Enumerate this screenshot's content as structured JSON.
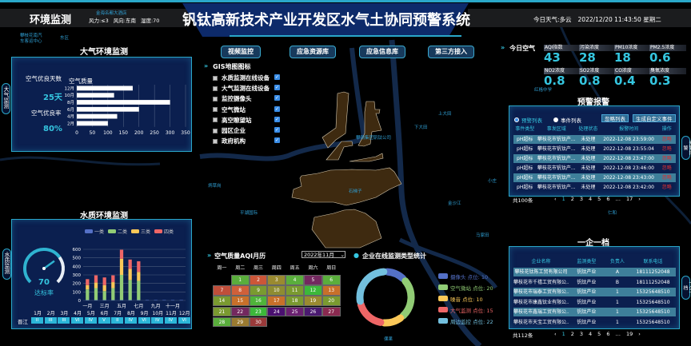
{
  "header": {
    "section": "环境监测",
    "wind_force": "风力:≤3",
    "wind_dir": "风向:东南",
    "humidity": "湿度:70",
    "title": "钒钛高新技术产业开发区水气土协同预警系统",
    "weather": "今日天气:多云",
    "datetime": "2022/12/20 11:43:50 星期二"
  },
  "nav": [
    "视频监控",
    "应急资源库",
    "应急信息库",
    "第三方接入"
  ],
  "layers": {
    "title": "GIS地图图标",
    "items": [
      "水质监测在线设备",
      "大气监测在线设备",
      "监控摄像头",
      "空气微站",
      "高空瞭望站",
      "园区企业",
      "政府机构"
    ]
  },
  "map_labels": [
    "攀枝花南汽车客运中心",
    "东区",
    "金海名都大酒店",
    "石梯子",
    "攀钢集团钒钛公司",
    "下大田",
    "上大田",
    "平湖国际",
    "红格中学",
    "金沙江",
    "小庄",
    "炳草岗",
    "马家田",
    "倮果",
    "仁和"
  ],
  "air_panel": {
    "title": "大气环境监测",
    "side_tab": "大气监测",
    "good_days_label": "空气优良天数",
    "good_days": "25天",
    "good_rate_label": "空气优良率",
    "good_rate": "80%"
  },
  "water_panel": {
    "title": "水质环境监测",
    "side_tab": "水质监测",
    "gauge_value": "70",
    "gauge_label": "达标率",
    "gauge_max": 100,
    "river": "晋江"
  },
  "today_air": {
    "title": "今日空气",
    "cards": [
      {
        "label": "AQI指数",
        "value": "43"
      },
      {
        "label": "污染浓度",
        "value": "28"
      },
      {
        "label": "PM10浓度",
        "value": "18"
      },
      {
        "label": "PM2.5浓度",
        "value": "0.6"
      },
      {
        "label": "NO2浓度",
        "value": "0.8"
      },
      {
        "label": "SO2浓度",
        "value": "0.8"
      },
      {
        "label": "CO浓度",
        "value": "0.4"
      },
      {
        "label": "臭氧浓度",
        "value": "0.3"
      }
    ]
  },
  "warning": {
    "title": "预警报警",
    "side_tab": "预警报警",
    "radio_warning": "预警列表",
    "radio_event": "事件列表",
    "ignore_btn": "忽略列表",
    "generate_btn": "生成自定义事件",
    "columns": [
      "事件类型",
      "事发区域",
      "处理状态",
      "报警时间",
      "操作"
    ],
    "rows": [
      [
        "pH超标",
        "攀枝花市钒钛产...",
        "未处理",
        "2022-12-08 23:59:00",
        "忽略"
      ],
      [
        "pH超标",
        "攀枝花市钒钛产...",
        "未处理",
        "2022-12-08 23:55:04",
        "忽略"
      ],
      [
        "pH超标",
        "攀枝花市钒钛产...",
        "未处理",
        "2022-12-08 23:47:00",
        "忽略"
      ],
      [
        "pH超标",
        "攀枝花市钒钛产...",
        "未处理",
        "2022-12-08 23:46:00",
        "忽略"
      ],
      [
        "pH超标",
        "攀枝花市钒钛产...",
        "未处理",
        "2022-12-08 23:43:00",
        "忽略"
      ],
      [
        "pH超标",
        "攀枝花市钒钛产...",
        "未处理",
        "2022-12-08 23:42:00",
        "忽略"
      ]
    ],
    "total": "共100条",
    "pages": [
      "‹",
      "1",
      "2",
      "3",
      "4",
      "5",
      "6",
      "…",
      "17",
      "›"
    ]
  },
  "enterprise": {
    "title": "一企一档",
    "side_tab": "一企一档",
    "columns": [
      "企业名称",
      "监测类型",
      "负责人",
      "联系电话"
    ],
    "rows": [
      [
        "攀枝花钛陈工贸有限公司",
        "钒钛产业",
        "A",
        "18111252048"
      ],
      [
        "攀枝花市千禧工贸有限公...",
        "钒钛产业",
        "B",
        "18111252048"
      ],
      [
        "攀枝花市瑞泰工贸有限公...",
        "钒钛产业",
        "1",
        "15325648510"
      ],
      [
        "攀枝花市康鑫钛业有限公...",
        "钒钛产业",
        "1",
        "15325648510"
      ],
      [
        "攀枝花市鑫瑞工贸有限公...",
        "钒钛产业",
        "1",
        "15325648510"
      ],
      [
        "攀枝花市天宝工贸有限公...",
        "钒钛产业",
        "1",
        "15325648510"
      ]
    ],
    "total": "共112条",
    "pages": [
      "‹",
      "1",
      "2",
      "3",
      "4",
      "5",
      "6",
      "…",
      "19",
      "›"
    ]
  },
  "calendar": {
    "title": "空气质量AQI月历",
    "month_select": "2022年11月",
    "weekdays": [
      "周一",
      "周二",
      "周三",
      "周四",
      "周五",
      "周六",
      "周日"
    ],
    "first_weekday": 1,
    "days": [
      {
        "d": "1",
        "c": "#5aae3c"
      },
      {
        "d": "2",
        "c": "#cc5638"
      },
      {
        "d": "3",
        "c": "#9a8a30"
      },
      {
        "d": "4",
        "c": "#5aae3c"
      },
      {
        "d": "5",
        "c": "#73285f"
      },
      {
        "d": "6",
        "c": "#5aae3c"
      },
      {
        "d": "7",
        "c": "#c04e3a"
      },
      {
        "d": "8",
        "c": "#d0603a"
      },
      {
        "d": "9",
        "c": "#7a9a30"
      },
      {
        "d": "10",
        "c": "#8e8c32"
      },
      {
        "d": "11",
        "c": "#7a9a30"
      },
      {
        "d": "12",
        "c": "#3cb83a"
      },
      {
        "d": "13",
        "c": "#c8702a"
      },
      {
        "d": "14",
        "c": "#7a9a30"
      },
      {
        "d": "15",
        "c": "#c8702a"
      },
      {
        "d": "16",
        "c": "#4fb43a"
      },
      {
        "d": "17",
        "c": "#c8702a"
      },
      {
        "d": "18",
        "c": "#7a9a30"
      },
      {
        "d": "19",
        "c": "#9a8a30"
      },
      {
        "d": "20",
        "c": "#7a9a30"
      },
      {
        "d": "21",
        "c": "#7a9a30"
      },
      {
        "d": "22",
        "c": "#73285f"
      },
      {
        "d": "23",
        "c": "#3cb83a"
      },
      {
        "d": "24",
        "c": "#4a1070"
      },
      {
        "d": "25",
        "c": "#6a2070"
      },
      {
        "d": "26",
        "c": "#4a1a70"
      },
      {
        "d": "27",
        "c": "#8a2a50"
      },
      {
        "d": "28",
        "c": "#5aae3c"
      },
      {
        "d": "29",
        "c": "#9a7a30"
      },
      {
        "d": "30",
        "c": "#9a3a3a"
      }
    ]
  },
  "chart_data": [
    {
      "type": "bar",
      "orientation": "horizontal",
      "title": "空气质量",
      "categories": [
        "12月",
        "10月",
        "8月",
        "6月",
        "4月",
        "2月"
      ],
      "values": [
        180,
        120,
        300,
        200,
        130,
        100
      ],
      "xlim": [
        0,
        350
      ],
      "xticks": [
        "0",
        "50",
        "100",
        "150",
        "200",
        "250",
        "300",
        "350"
      ],
      "grid": true,
      "color": "#ffffff"
    },
    {
      "type": "bar",
      "stacked": true,
      "categories": [
        "1月",
        "2月",
        "3月",
        "4月",
        "5月",
        "6月",
        "7月",
        "8月",
        "9月",
        "10月",
        "11月",
        "12月"
      ],
      "xticklabels": [
        "一月",
        "三月",
        "五月",
        "七月",
        "九月",
        "十一月"
      ],
      "ylim": [
        0,
        600
      ],
      "yticks": [
        "0",
        "100",
        "200",
        "300",
        "400",
        "500",
        "600"
      ],
      "legend": "top",
      "series": [
        {
          "name": "一类",
          "color": "#5470c6",
          "values": [
            5,
            5,
            5,
            5,
            5,
            5,
            5,
            5,
            5,
            5,
            5,
            5
          ]
        },
        {
          "name": "二类",
          "color": "#91cc75",
          "values": [
            125,
            140,
            105,
            140,
            295,
            235,
            225,
            0,
            0,
            0,
            0,
            0
          ]
        },
        {
          "name": "三类",
          "color": "#fac858",
          "values": [
            50,
            65,
            70,
            70,
            190,
            130,
            105,
            0,
            0,
            0,
            0,
            0
          ]
        },
        {
          "name": "四类",
          "color": "#ee6666",
          "values": [
            70,
            85,
            90,
            80,
            105,
            110,
            125,
            0,
            0,
            0,
            0,
            0
          ]
        }
      ],
      "grades": [
        "II",
        "III",
        "III",
        "VI",
        "IV",
        "V",
        "II",
        "IV",
        "VI",
        "IV",
        "IV",
        "VI"
      ]
    },
    {
      "type": "pie",
      "donut": true,
      "title": "企业在线监测类型统计",
      "legend": "right",
      "slices": [
        {
          "name": "摄像头",
          "label": "摄像头 点位: 10",
          "value": 10,
          "color": "#5470c6"
        },
        {
          "name": "空气微站",
          "label": "空气微站 点位: 20",
          "value": 20,
          "color": "#91cc75"
        },
        {
          "name": "噪音",
          "label": "噪音 点位: 10",
          "value": 10,
          "color": "#fac858"
        },
        {
          "name": "大气监测",
          "label": "大气监测 点位: 15",
          "value": 15,
          "color": "#ee6666"
        },
        {
          "name": "周边监控",
          "label": "周边监控 点位: 22",
          "value": 22,
          "color": "#73c0de"
        }
      ]
    }
  ]
}
